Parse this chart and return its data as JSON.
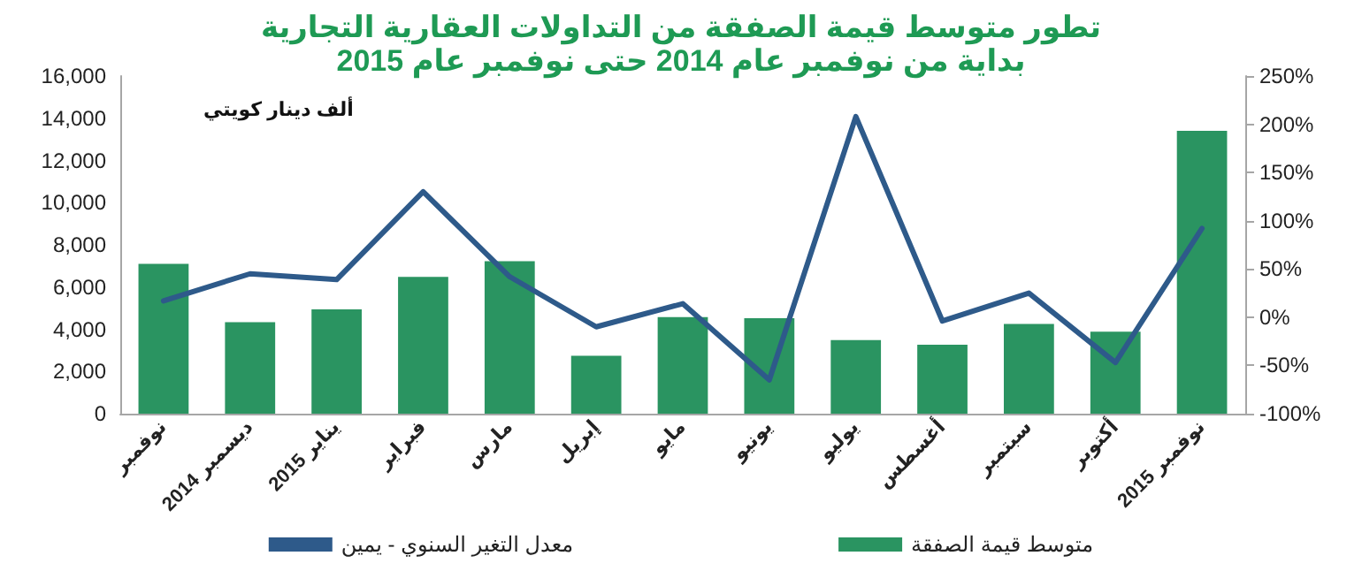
{
  "chart_data": {
    "type": "bar",
    "title": "تطور متوسط قيمة الصفقة من التداولات العقارية التجارية",
    "subtitle": "بداية من نوفمبر عام 2014 حتى نوفمبر عام 2015",
    "annotations": [
      "ألف دينار كويتي"
    ],
    "categories": [
      "نوفمبر",
      "ديسمبر 2014",
      "يناير 2015",
      "فبراير",
      "مارس",
      "إبريل",
      "مايو",
      "يونيو",
      "يوليو",
      "أغسطس",
      "سبتمبر",
      "أكتوبر",
      "نوفمبر 2015"
    ],
    "series": [
      {
        "name": "متوسط قيمة الصفقة",
        "color": "#2a9461",
        "values": [
          7100,
          4330,
          4940,
          6480,
          7230,
          2740,
          4580,
          4520,
          3490,
          3270,
          4250,
          3880,
          13400
        ]
      },
      {
        "name": "معدل التغير السنوي - يمين",
        "type": "line",
        "axis": "y2",
        "color": "#2e5a8a",
        "values": [
          17,
          45,
          39,
          130,
          42,
          -10,
          14,
          -65,
          208,
          -4,
          25,
          -47,
          92
        ]
      }
    ],
    "ylim": [
      0,
      16000
    ],
    "yticks": [
      {
        "value": 0,
        "label": "0"
      },
      {
        "value": 2000,
        "label": "2,000"
      },
      {
        "value": 4000,
        "label": "4,000"
      },
      {
        "value": 6000,
        "label": "6,000"
      },
      {
        "value": 8000,
        "label": "8,000"
      },
      {
        "value": 10000,
        "label": "10,000"
      },
      {
        "value": 12000,
        "label": "12,000"
      },
      {
        "value": 14000,
        "label": "14,000"
      },
      {
        "value": 16000,
        "label": "16,000"
      }
    ],
    "y2lim": [
      -100,
      250
    ],
    "y2ticks": [
      {
        "value": -100,
        "label": "-100%"
      },
      {
        "value": -50,
        "label": "-50%"
      },
      {
        "value": 0,
        "label": "0%"
      },
      {
        "value": 50,
        "label": "50%"
      },
      {
        "value": 100,
        "label": "100%"
      },
      {
        "value": 150,
        "label": "150%"
      },
      {
        "value": 200,
        "label": "200%"
      },
      {
        "value": 250,
        "label": "250%"
      }
    ],
    "legend": "bottom",
    "grid": false,
    "marker": "none"
  }
}
